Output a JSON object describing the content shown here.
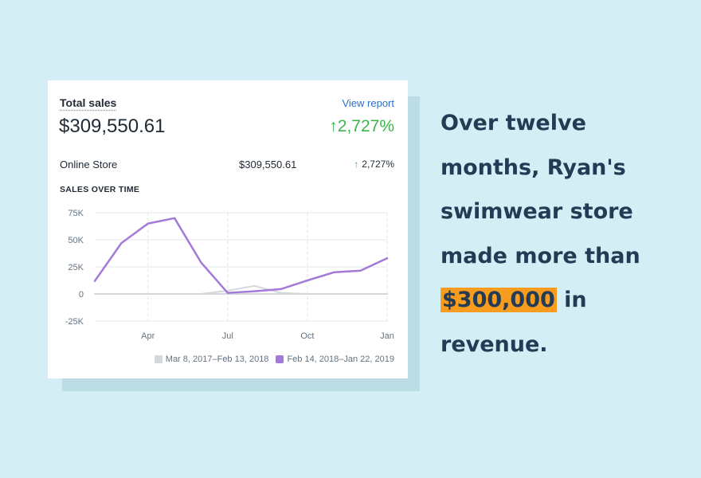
{
  "card": {
    "title": "Total sales",
    "view_report": "View report",
    "total_amount": "$309,550.61",
    "total_change": "2,727%",
    "channel_label": "Online Store",
    "channel_amount": "$309,550.61",
    "channel_change": "2,727%",
    "section_heading": "SALES OVER TIME"
  },
  "colors": {
    "current": "#a47ad8",
    "previous": "#d3d8dd",
    "positive": "#3db54a",
    "link": "#2c6ecb",
    "highlight": "#f79c1f",
    "headline": "#233b54"
  },
  "headline": {
    "before": "Over twelve months, Ryan's swimwear store made more than",
    "highlight": "$300,000",
    "after": "in revenue."
  },
  "chart_data": {
    "type": "line",
    "title": "SALES OVER TIME",
    "xlabel": "",
    "ylabel": "",
    "ylim": [
      -25000,
      75000
    ],
    "yticks": [
      75000,
      50000,
      25000,
      0,
      -25000
    ],
    "ytick_labels": [
      "75K",
      "50K",
      "25K",
      "0",
      "-25K"
    ],
    "xlim": [
      0,
      11
    ],
    "xticks": [
      2,
      5,
      8,
      11
    ],
    "xtick_labels": [
      "Apr",
      "Jul",
      "Oct",
      "Jan"
    ],
    "grid": true,
    "legend_position": "bottom-right",
    "series": [
      {
        "name": "Mar 8, 2017–Feb 13, 2018",
        "x": [
          0,
          1,
          2,
          3,
          4,
          5,
          6,
          7,
          8,
          9,
          10,
          11
        ],
        "values": [
          0,
          0,
          0,
          0,
          0,
          3000,
          7500,
          1000,
          0,
          0,
          0,
          0
        ]
      },
      {
        "name": "Feb 14, 2018–Jan 22, 2019",
        "x": [
          0,
          1,
          2,
          3,
          4,
          5,
          6,
          7,
          8,
          9,
          10,
          11
        ],
        "values": [
          12000,
          47000,
          65000,
          70000,
          29000,
          1000,
          2500,
          4500,
          12500,
          20000,
          21500,
          33000
        ]
      }
    ]
  }
}
